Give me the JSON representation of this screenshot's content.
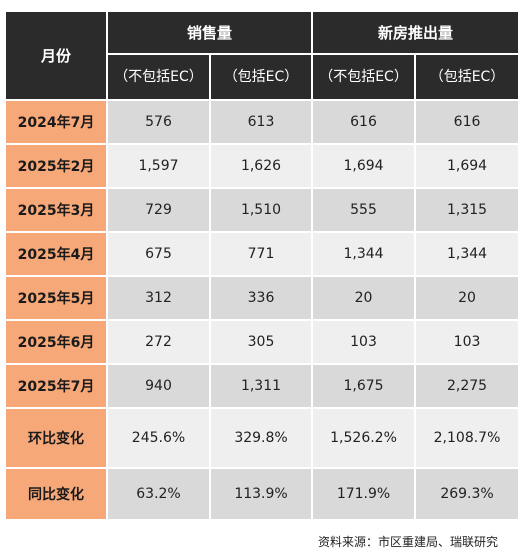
{
  "table": {
    "month_header": "月份",
    "groups": [
      "销售量",
      "新房推出量"
    ],
    "subheaders": [
      "（不包括EC）",
      "（包括EC）",
      "（不包括EC）",
      "（包括EC）"
    ],
    "rows": [
      {
        "label": "2024年7月",
        "values": [
          "576",
          "613",
          "616",
          "616"
        ]
      },
      {
        "label": "2025年2月",
        "values": [
          "1,597",
          "1,626",
          "1,694",
          "1,694"
        ]
      },
      {
        "label": "2025年3月",
        "values": [
          "729",
          "1,510",
          "555",
          "1,315"
        ]
      },
      {
        "label": "2025年4月",
        "values": [
          "675",
          "771",
          "1,344",
          "1,344"
        ]
      },
      {
        "label": "2025年5月",
        "values": [
          "312",
          "336",
          "20",
          "20"
        ]
      },
      {
        "label": "2025年6月",
        "values": [
          "272",
          "305",
          "103",
          "103"
        ]
      },
      {
        "label": "2025年7月",
        "values": [
          "940",
          "1,311",
          "1,675",
          "2,275"
        ]
      },
      {
        "label": "环比变化",
        "values": [
          "245.6%",
          "329.8%",
          "1,526.2%",
          "2,108.7%"
        ]
      },
      {
        "label": "同比变化",
        "values": [
          "63.2%",
          "113.9%",
          "171.9%",
          "269.3%"
        ]
      }
    ]
  },
  "source": "资料来源：市区重建局、瑞联研究",
  "colors": {
    "header_bg": "#2b2b2b",
    "row_label_bg": "#f6a878",
    "row_odd_bg": "#d9d9d9",
    "row_even_bg": "#efefef"
  }
}
